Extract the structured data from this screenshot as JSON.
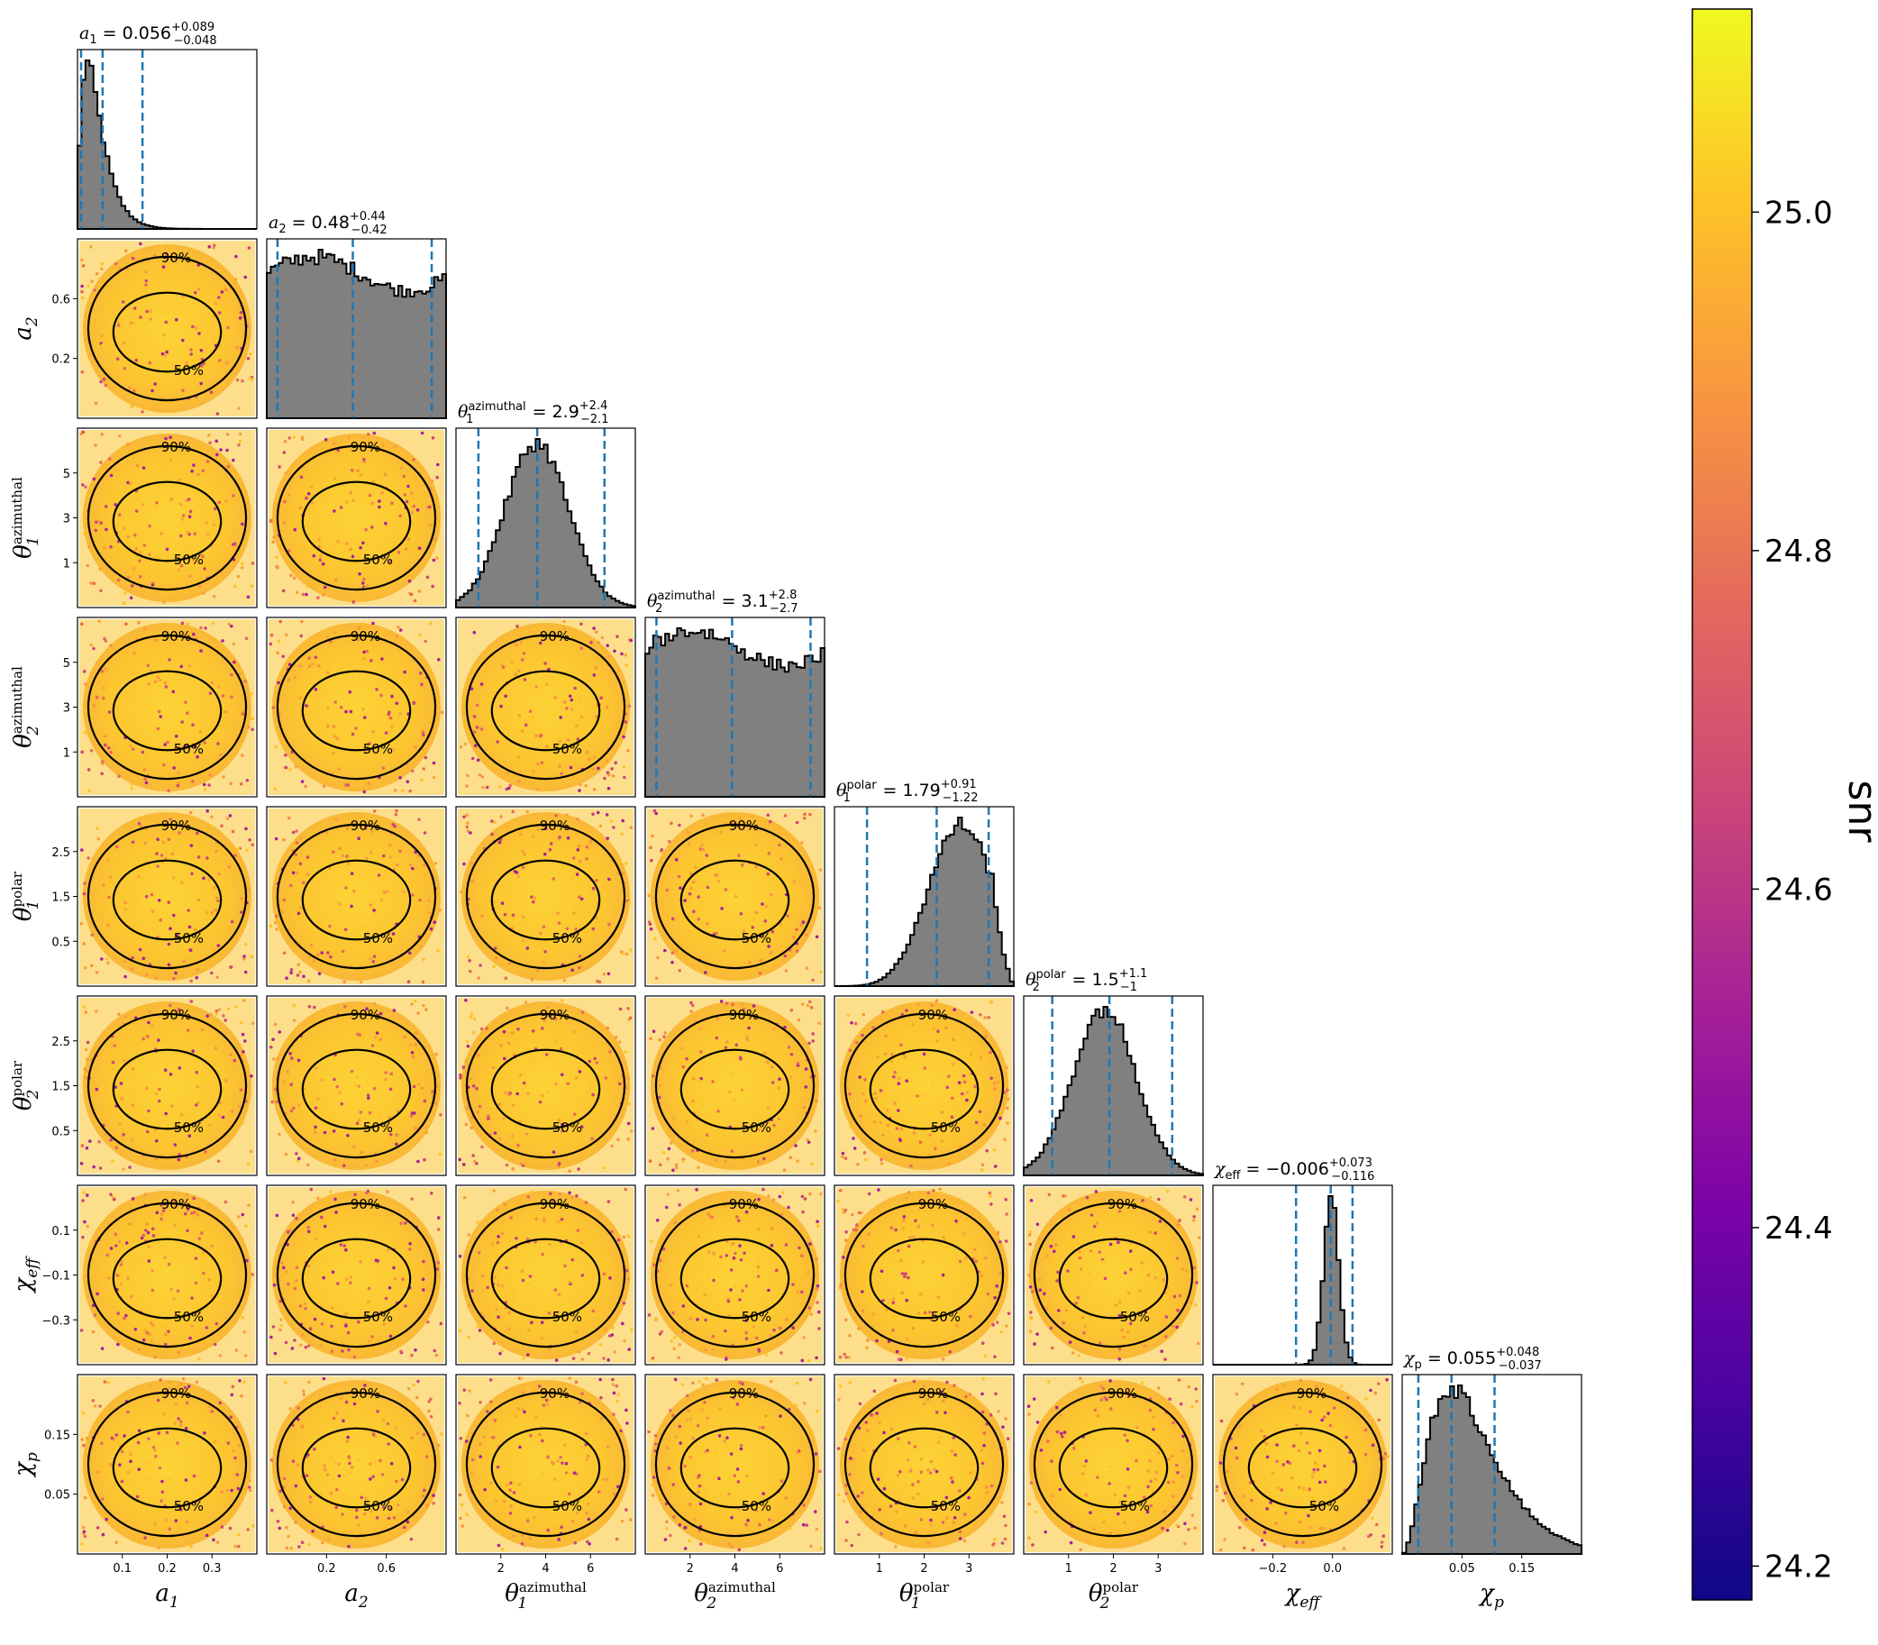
{
  "chart_data": {
    "type": "corner",
    "parameters": [
      {
        "symbol": "a",
        "sub": "1",
        "sup": "",
        "range": [
          0,
          0.4
        ],
        "ticks": [
          "0.1",
          "0.2",
          "0.3"
        ],
        "median": "0.056",
        "plus": "+0.089",
        "minus": "−0.048",
        "dash_values": [
          0.008,
          0.056,
          0.145
        ],
        "hist_peak": 0.04,
        "hist_shape": "skewed-right"
      },
      {
        "symbol": "a",
        "sub": "2",
        "sup": "",
        "range": [
          0,
          1
        ],
        "ticks": [
          "0.2",
          "0.6"
        ],
        "median": "0.48",
        "plus": "+0.44",
        "minus": "−0.42",
        "dash_values": [
          0.06,
          0.48,
          0.92
        ],
        "hist_shape": "flat"
      },
      {
        "symbol": "θ",
        "sub": "1",
        "sup": "azimuthal",
        "range": [
          0,
          6.4
        ],
        "ticks": [
          "2",
          "4",
          "6"
        ],
        "median": "2.9",
        "plus": "+2.4",
        "minus": "−2.1",
        "dash_values": [
          0.8,
          2.9,
          5.3
        ],
        "hist_shape": "peaked"
      },
      {
        "symbol": "θ",
        "sub": "2",
        "sup": "azimuthal",
        "range": [
          0,
          6.4
        ],
        "ticks": [
          "2",
          "4",
          "6"
        ],
        "median": "3.1",
        "plus": "+2.8",
        "minus": "−2.7",
        "dash_values": [
          0.4,
          3.1,
          5.9
        ],
        "hist_shape": "flat"
      },
      {
        "symbol": "θ",
        "sub": "1",
        "sup": "polar",
        "range": [
          0,
          3.14
        ],
        "ticks": [
          "1",
          "2",
          "3"
        ],
        "median": "1.79",
        "plus": "+0.91",
        "minus": "−1.22",
        "dash_values": [
          0.57,
          1.79,
          2.7
        ],
        "hist_shape": "skewed-left"
      },
      {
        "symbol": "θ",
        "sub": "2",
        "sup": "polar",
        "range": [
          0,
          3.14
        ],
        "ticks": [
          "1",
          "2",
          "3"
        ],
        "median": "1.5",
        "plus": "+1.1",
        "minus": "−1",
        "dash_values": [
          0.5,
          1.5,
          2.6
        ],
        "hist_shape": "peaked"
      },
      {
        "symbol": "χ",
        "sub": "eff",
        "sup": "",
        "range": [
          -0.4,
          0.2
        ],
        "ticks": [
          "−0.2",
          "0.0"
        ],
        "median": "−0.006",
        "plus": "+0.073",
        "minus": "−0.116",
        "dash_values": [
          -0.122,
          -0.006,
          0.067
        ],
        "hist_shape": "narrow"
      },
      {
        "symbol": "χ",
        "sub": "p",
        "sup": "",
        "range": [
          0,
          0.2
        ],
        "ticks": [
          "0.05",
          "0.15"
        ],
        "median": "0.055",
        "plus": "+0.048",
        "minus": "−0.037",
        "dash_values": [
          0.018,
          0.055,
          0.103
        ],
        "hist_shape": "skewed-right"
      }
    ],
    "y_ticks": {
      "1": [
        "0.6",
        "0.2"
      ],
      "2": [
        "5",
        "3",
        "1"
      ],
      "3": [
        "5",
        "3",
        "1"
      ],
      "4": [
        "2.5",
        "1.5",
        "0.5"
      ],
      "5": [
        "2.5",
        "1.5",
        "0.5"
      ],
      "6": [
        "0.1",
        "−0.1",
        "−0.3"
      ],
      "7": [
        "0.15",
        "0.05"
      ]
    },
    "contour_levels": [
      "50%",
      "90%"
    ],
    "colorbar": {
      "label": "snr",
      "min": 24.18,
      "max": 25.12,
      "ticks": [
        "25.0",
        "24.8",
        "24.6",
        "24.4",
        "24.2"
      ],
      "colormap": "plasma"
    },
    "hist_color": "#808080",
    "dash_color": "#1f77b4",
    "grid": false
  }
}
